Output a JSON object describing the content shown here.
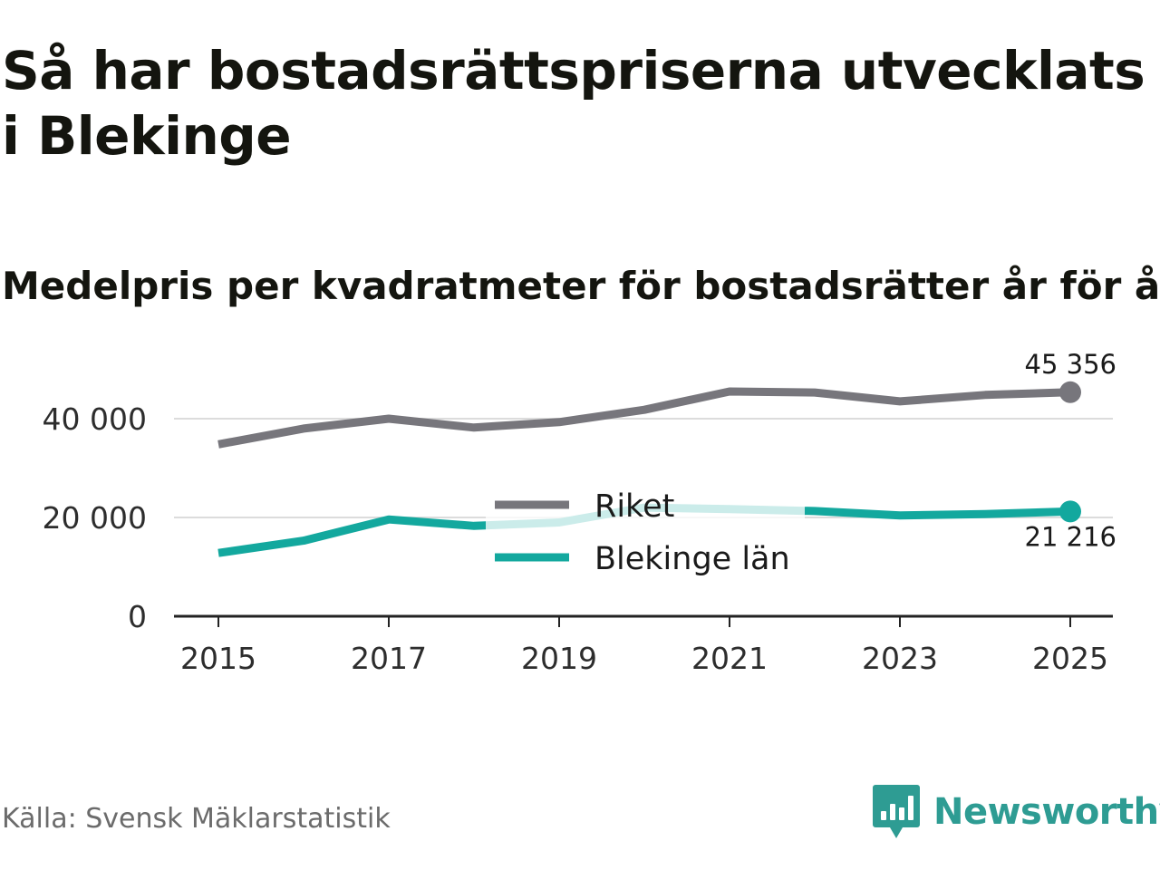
{
  "title": "Så har bostadsrättspriserna utvecklats i Blekinge",
  "subtitle": "Medelpris per kvadratmeter för bostadsrätter år för år",
  "source": "Källa: Svensk Mäklarstatistik",
  "brand": {
    "name": "Newsworthy",
    "icon": "newsworthy-logo-icon",
    "color": "#2e9c93"
  },
  "chart_data": {
    "type": "line",
    "title": "Medelpris per kvadratmeter för bostadsrätter år för år",
    "xlabel": "",
    "ylabel": "",
    "x": [
      2015,
      2016,
      2017,
      2018,
      2019,
      2020,
      2021,
      2022,
      2023,
      2024,
      2025
    ],
    "xlim": [
      2014.5,
      2025.5
    ],
    "ylim": [
      0,
      50000
    ],
    "x_ticks": [
      2015,
      2017,
      2019,
      2021,
      2023,
      2025
    ],
    "x_tick_labels": [
      "2015",
      "2017",
      "2019",
      "2021",
      "2023",
      "2025"
    ],
    "y_ticks": [
      0,
      20000,
      40000
    ],
    "y_tick_labels": [
      "0",
      "20 000",
      "40 000"
    ],
    "grid": "horizontal",
    "legend_position": "center",
    "series": [
      {
        "name": "Riket",
        "color": "#77767c",
        "values": [
          34800,
          38000,
          40000,
          38200,
          39300,
          41800,
          45500,
          45300,
          43500,
          44800,
          45356
        ],
        "end_label": "45 356"
      },
      {
        "name": "Blekinge län",
        "color": "#13a89e",
        "faded_color": "#cfeae8",
        "values": [
          12800,
          15300,
          19600,
          18300,
          19000,
          22000,
          21700,
          21300,
          20400,
          20700,
          21216
        ],
        "end_label": "21 216"
      }
    ]
  }
}
